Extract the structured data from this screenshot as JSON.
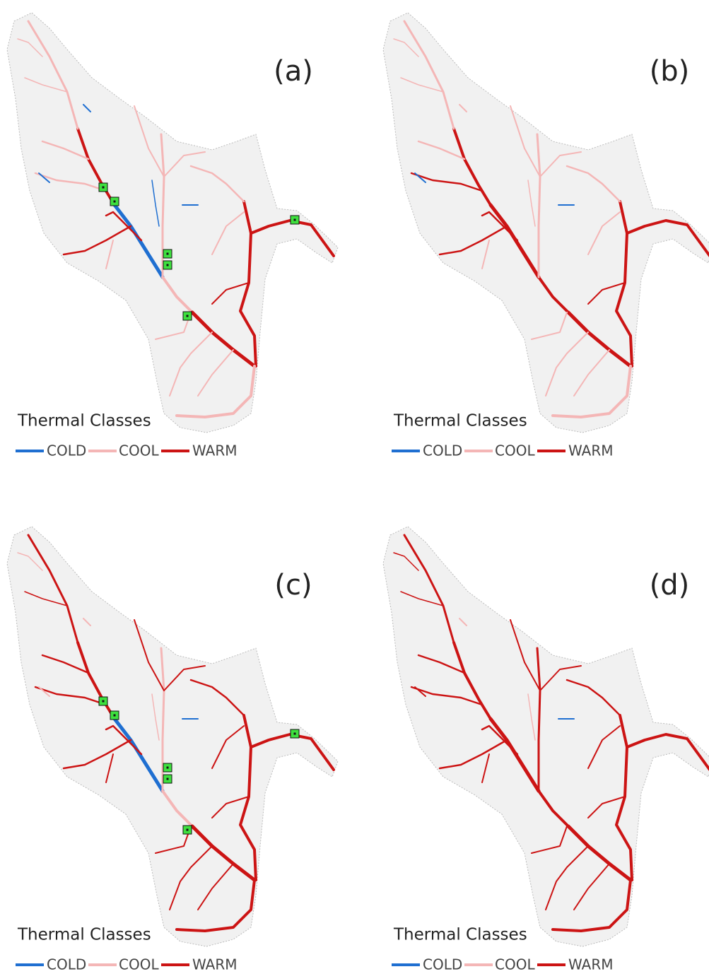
{
  "panels": [
    {
      "label": "(a)"
    },
    {
      "label": "(b)"
    },
    {
      "label": "(c)"
    },
    {
      "label": "(d)"
    }
  ],
  "legend": {
    "title": "Thermal Classes",
    "items": [
      {
        "name": "COLD",
        "color": "#1f6fd1"
      },
      {
        "name": "COOL",
        "color": "#f4b6b6"
      },
      {
        "name": "WARM",
        "color": "#cc1414"
      }
    ]
  }
}
